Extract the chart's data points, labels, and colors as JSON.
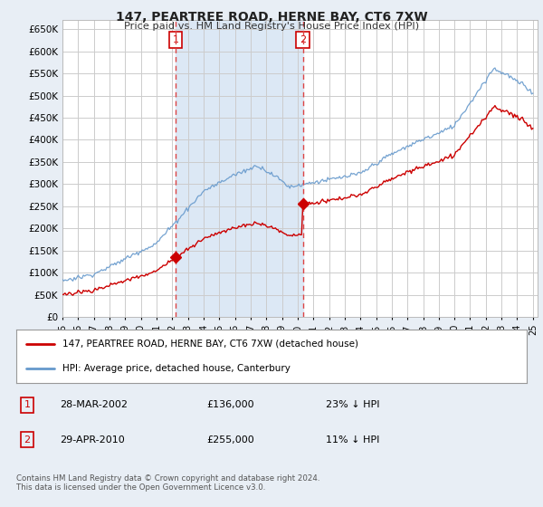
{
  "title": "147, PEARTREE ROAD, HERNE BAY, CT6 7XW",
  "subtitle": "Price paid vs. HM Land Registry's House Price Index (HPI)",
  "ytick_vals": [
    0,
    50000,
    100000,
    150000,
    200000,
    250000,
    300000,
    350000,
    400000,
    450000,
    500000,
    550000,
    600000,
    650000
  ],
  "ylim": [
    0,
    670000
  ],
  "fig_bg_color": "#e8eef5",
  "plot_bg_color": "#ffffff",
  "shade_color": "#dce8f5",
  "grid_color": "#cccccc",
  "hpi_color": "#6699cc",
  "price_color": "#cc0000",
  "vline_color": "#dd4444",
  "transaction1": {
    "date_num": 2002.22,
    "price": 136000,
    "label": "1",
    "date_str": "28-MAR-2002",
    "pct": "23% ↓ HPI"
  },
  "transaction2": {
    "date_num": 2010.33,
    "price": 255000,
    "label": "2",
    "date_str": "29-APR-2010",
    "pct": "11% ↓ HPI"
  },
  "legend_price_label": "147, PEARTREE ROAD, HERNE BAY, CT6 7XW (detached house)",
  "legend_hpi_label": "HPI: Average price, detached house, Canterbury",
  "footer": "Contains HM Land Registry data © Crown copyright and database right 2024.\nThis data is licensed under the Open Government Licence v3.0.",
  "table_rows": [
    {
      "num": "1",
      "date": "28-MAR-2002",
      "price": "£136,000",
      "pct": "23% ↓ HPI"
    },
    {
      "num": "2",
      "date": "29-APR-2010",
      "price": "£255,000",
      "pct": "11% ↓ HPI"
    }
  ]
}
